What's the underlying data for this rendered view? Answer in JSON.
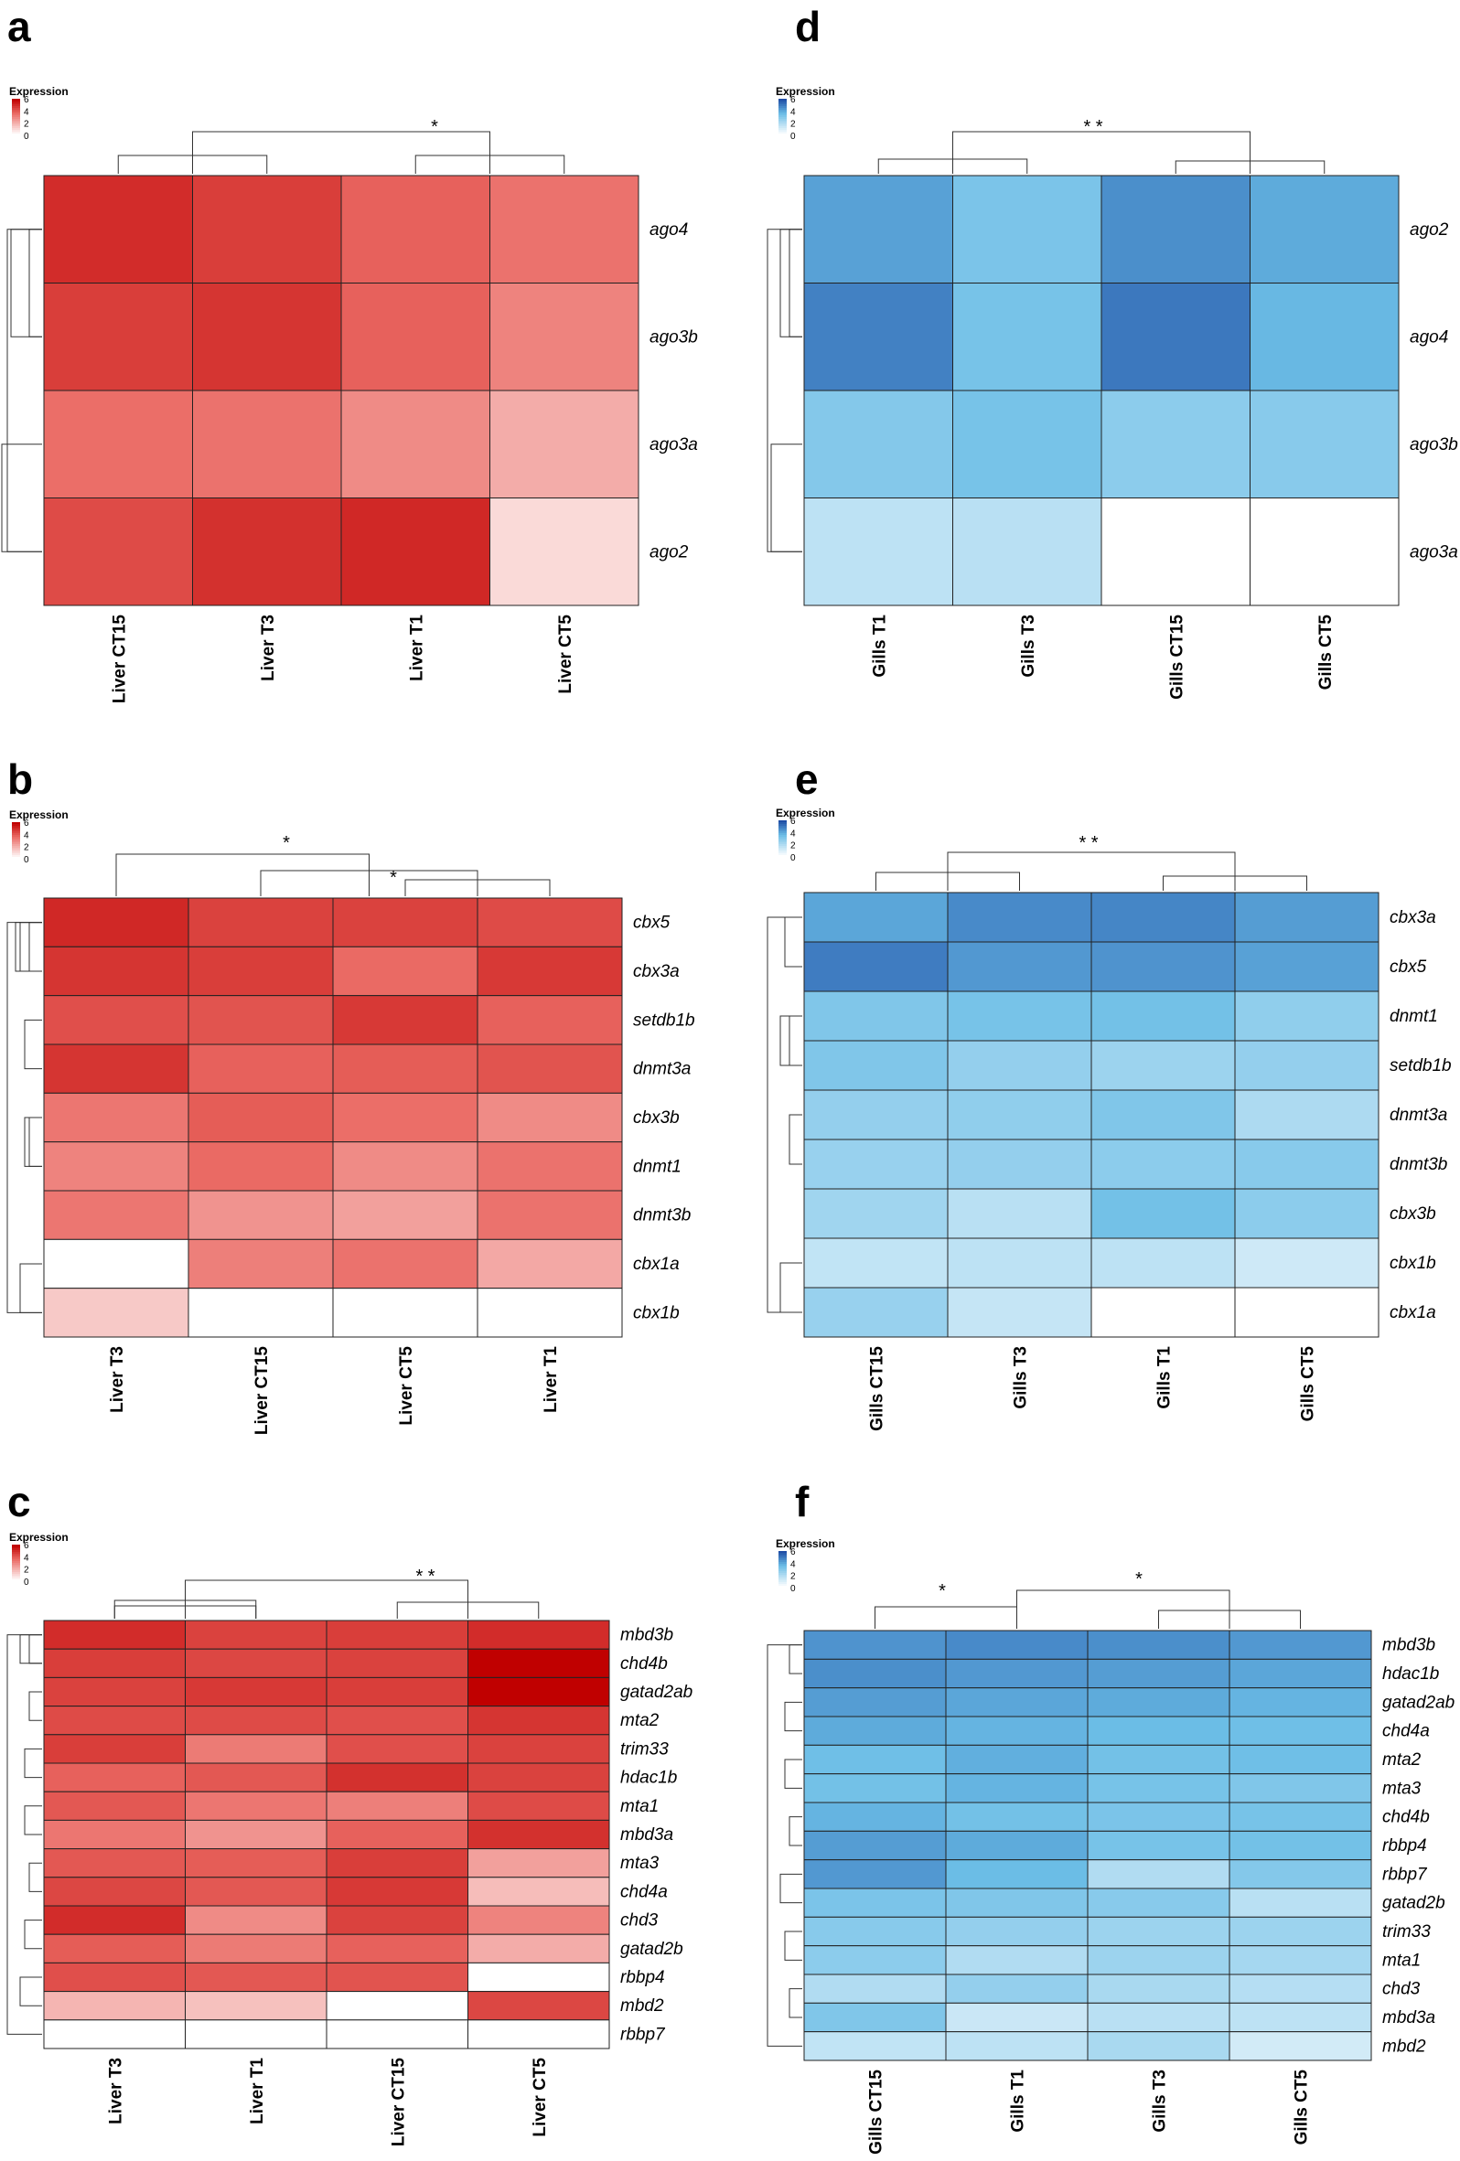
{
  "chart_data": [
    {
      "panel": "a",
      "type": "heatmap",
      "palette": "red",
      "legend": {
        "title": "Expression",
        "ticks": [
          "6",
          "4",
          "2",
          "0"
        ]
      },
      "columns": [
        "Liver CT15",
        "Liver T3",
        "Liver T1",
        "Liver CT5"
      ],
      "rows": [
        "ago4",
        "ago3b",
        "ago3a",
        "ago2"
      ],
      "values": [
        [
          5.0,
          4.6,
          3.8,
          3.4
        ],
        [
          4.6,
          4.8,
          3.8,
          3.0
        ],
        [
          3.5,
          3.4,
          2.8,
          2.0
        ],
        [
          4.3,
          4.9,
          5.1,
          0.9
        ]
      ],
      "annotations": [
        "*"
      ]
    },
    {
      "panel": "b",
      "type": "heatmap",
      "palette": "red",
      "legend": {
        "title": "Expression",
        "ticks": [
          "6",
          "4",
          "2",
          "0"
        ]
      },
      "columns": [
        "Liver T3",
        "Liver CT15",
        "Liver CT5",
        "Liver T1"
      ],
      "rows": [
        "cbx5",
        "cbx3a",
        "setdb1b",
        "dnmt3a",
        "cbx3b",
        "dnmt1",
        "dnmt3b",
        "cbx1a",
        "cbx1b"
      ],
      "values": [
        [
          5.1,
          4.5,
          4.5,
          4.3
        ],
        [
          4.8,
          4.6,
          3.6,
          4.7
        ],
        [
          4.2,
          4.1,
          4.7,
          3.8
        ],
        [
          4.8,
          3.8,
          3.9,
          4.1
        ],
        [
          3.3,
          3.9,
          3.5,
          2.8
        ],
        [
          3.0,
          3.6,
          2.8,
          3.4
        ],
        [
          3.3,
          2.6,
          2.3,
          3.4
        ],
        [
          0.0,
          3.1,
          3.4,
          2.1
        ],
        [
          1.3,
          0.0,
          0.0,
          0.0
        ]
      ],
      "annotations": [
        "*",
        "*"
      ]
    },
    {
      "panel": "c",
      "type": "heatmap",
      "palette": "red",
      "legend": {
        "title": "Expression",
        "ticks": [
          "6",
          "4",
          "2",
          "0"
        ]
      },
      "columns": [
        "Liver T3",
        "Liver T1",
        "Liver CT15",
        "Liver CT5"
      ],
      "rows": [
        "mbd3b",
        "chd4b",
        "gatad2ab",
        "mta2",
        "trim33",
        "hdac1b",
        "mta1",
        "mbd3a",
        "mta3",
        "chd4a",
        "chd3",
        "gatad2b",
        "rbbp4",
        "mbd2",
        "rbbp7"
      ],
      "values": [
        [
          5.0,
          4.5,
          4.6,
          5.0
        ],
        [
          4.6,
          4.4,
          4.5,
          6.0
        ],
        [
          4.5,
          4.7,
          4.6,
          6.0
        ],
        [
          4.3,
          4.3,
          4.2,
          4.8
        ],
        [
          4.6,
          3.2,
          4.2,
          4.5
        ],
        [
          3.8,
          4.0,
          4.9,
          4.5
        ],
        [
          4.0,
          3.3,
          3.1,
          4.3
        ],
        [
          3.3,
          2.6,
          3.8,
          4.9
        ],
        [
          4.0,
          3.9,
          4.6,
          2.3
        ],
        [
          4.4,
          4.0,
          4.7,
          1.6
        ],
        [
          5.0,
          2.8,
          4.5,
          3.0
        ],
        [
          3.9,
          3.2,
          3.8,
          2.0
        ],
        [
          4.2,
          4.0,
          4.1,
          0.0
        ],
        [
          1.8,
          1.5,
          0.0,
          4.4
        ],
        [
          0.0,
          0.0,
          0.0,
          0.0
        ]
      ],
      "annotations": [
        "* *"
      ]
    },
    {
      "panel": "d",
      "type": "heatmap",
      "palette": "blue",
      "legend": {
        "title": "Expression",
        "ticks": [
          "6",
          "4",
          "2",
          "0"
        ]
      },
      "columns": [
        "Gills T1",
        "Gills T3",
        "Gills CT15",
        "Gills CT5"
      ],
      "rows": [
        "ago2",
        "ago4",
        "ago3b",
        "ago3a"
      ],
      "values": [
        [
          4.2,
          3.2,
          4.6,
          4.0
        ],
        [
          4.9,
          3.3,
          5.1,
          3.7
        ],
        [
          3.0,
          3.3,
          2.8,
          2.9
        ],
        [
          1.6,
          1.7,
          0.0,
          0.0
        ]
      ],
      "annotations": [
        "* *"
      ]
    },
    {
      "panel": "e",
      "type": "heatmap",
      "palette": "blue",
      "legend": {
        "title": "Expression",
        "ticks": [
          "6",
          "4",
          "2",
          "0"
        ]
      },
      "columns": [
        "Gills CT15",
        "Gills T3",
        "Gills T1",
        "Gills CT5"
      ],
      "rows": [
        "cbx3a",
        "cbx5",
        "dnmt1",
        "setdb1b",
        "dnmt3a",
        "dnmt3b",
        "cbx3b",
        "cbx1b",
        "cbx1a"
      ],
      "values": [
        [
          4.1,
          4.7,
          4.8,
          4.3
        ],
        [
          5.0,
          4.4,
          4.5,
          4.2
        ],
        [
          3.1,
          3.3,
          3.4,
          2.7
        ],
        [
          3.1,
          2.6,
          2.4,
          2.6
        ],
        [
          2.6,
          2.7,
          3.1,
          2.0
        ],
        [
          2.5,
          2.6,
          2.8,
          2.9
        ],
        [
          2.3,
          1.7,
          3.4,
          2.8
        ],
        [
          1.5,
          1.6,
          1.6,
          1.2
        ],
        [
          2.5,
          1.4,
          0.0,
          0.0
        ]
      ],
      "annotations": [
        "* *"
      ]
    },
    {
      "panel": "f",
      "type": "heatmap",
      "palette": "blue",
      "legend": {
        "title": "Expression",
        "ticks": [
          "6",
          "4",
          "2",
          "0"
        ]
      },
      "columns": [
        "Gills CT15",
        "Gills T1",
        "Gills T3",
        "Gills CT5"
      ],
      "rows": [
        "mbd3b",
        "hdac1b",
        "gatad2ab",
        "chd4a",
        "mta2",
        "mta3",
        "chd4b",
        "rbbp4",
        "rbbp7",
        "gatad2b",
        "trim33",
        "mta1",
        "chd3",
        "mbd3a",
        "mbd2"
      ],
      "values": [
        [
          4.5,
          4.7,
          4.6,
          4.4
        ],
        [
          4.6,
          4.4,
          4.3,
          4.1
        ],
        [
          4.3,
          4.1,
          4.0,
          3.8
        ],
        [
          4.0,
          3.8,
          3.6,
          3.5
        ],
        [
          3.5,
          3.9,
          3.4,
          3.5
        ],
        [
          3.4,
          3.8,
          3.3,
          3.1
        ],
        [
          3.8,
          3.4,
          3.2,
          3.3
        ],
        [
          4.3,
          4.0,
          3.3,
          3.4
        ],
        [
          4.4,
          3.6,
          1.9,
          3.0
        ],
        [
          3.2,
          3.1,
          2.9,
          1.7
        ],
        [
          2.9,
          2.6,
          2.4,
          2.4
        ],
        [
          2.8,
          1.9,
          2.4,
          2.2
        ],
        [
          1.9,
          2.6,
          2.1,
          1.8
        ],
        [
          3.1,
          1.3,
          1.7,
          1.6
        ],
        [
          1.5,
          1.6,
          2.1,
          1.1
        ]
      ],
      "annotations": [
        "*",
        "*"
      ]
    }
  ],
  "colors": {
    "red_low": "#ffffff",
    "red_mid": "#ea6a64",
    "red_high": "#c00000",
    "blue_low": "#ffffff",
    "blue_mid": "#6bbde6",
    "blue_high": "#1f4ea6"
  }
}
